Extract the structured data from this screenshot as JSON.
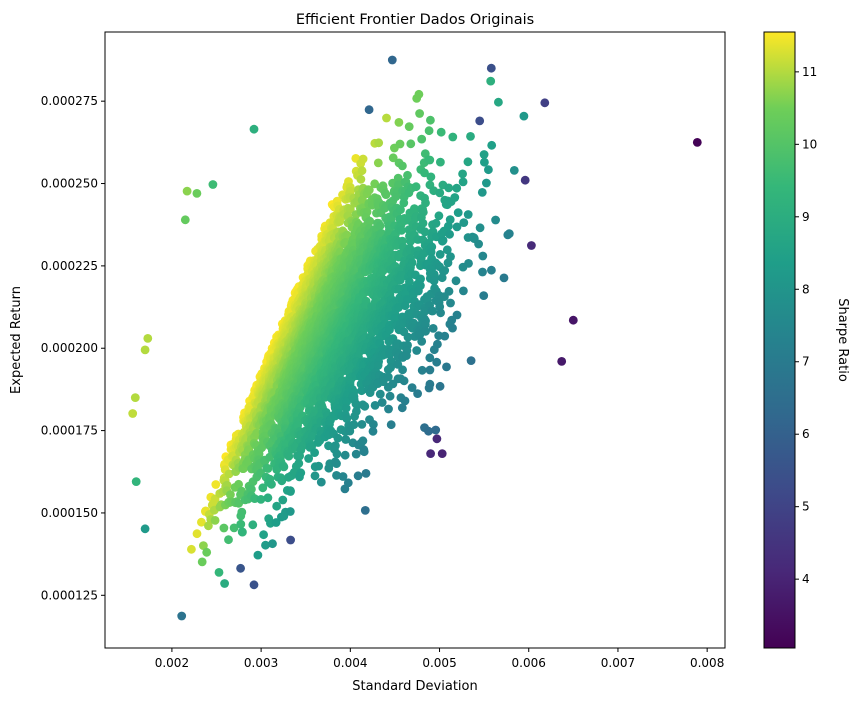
{
  "chart_data": {
    "type": "scatter",
    "title": "Efficient Frontier  Dados Originais",
    "xlabel": "Standard Deviation",
    "ylabel": "Expected Return",
    "xlim": [
      0.00125,
      0.0082
    ],
    "ylim": [
      0.000109,
      0.000296
    ],
    "xticks": [
      0.002,
      0.003,
      0.004,
      0.005,
      0.006,
      0.007,
      0.008
    ],
    "xtick_labels": [
      "0.002",
      "0.003",
      "0.004",
      "0.005",
      "0.006",
      "0.007",
      "0.008"
    ],
    "yticks": [
      0.000125,
      0.00015,
      0.000175,
      0.0002,
      0.000225,
      0.00025,
      0.000275
    ],
    "ytick_labels": [
      "0.000125",
      "0.000150",
      "0.000175",
      "0.000200",
      "0.000225",
      "0.000250",
      "0.000275"
    ],
    "grid": false,
    "colormap": "viridis",
    "colorbar": {
      "label": "Sharpe Ratio",
      "range": [
        3.05,
        11.55
      ],
      "ticks": [
        4,
        5,
        6,
        7,
        8,
        9,
        10,
        11
      ],
      "tick_labels": [
        "4",
        "5",
        "6",
        "7",
        "8",
        "9",
        "10",
        "11"
      ]
    },
    "cloud": {
      "description_points": 5000,
      "std_mean": 0.0034,
      "std_sd": 0.00075,
      "return_mean": 0.000203,
      "return_sd": 2.2e-05,
      "correlation": 0.55
    },
    "points": [
      {
        "x": 0.00789,
        "y": 0.0002625,
        "sharpe": 3.1
      },
      {
        "x": 0.0065,
        "y": 0.0002085,
        "sharpe": 3.6
      },
      {
        "x": 0.00637,
        "y": 0.000196,
        "sharpe": 3.7
      },
      {
        "x": 0.00618,
        "y": 0.0002745,
        "sharpe": 4.9
      },
      {
        "x": 0.00603,
        "y": 0.0002312,
        "sharpe": 4.2
      },
      {
        "x": 0.00596,
        "y": 0.000251,
        "sharpe": 4.6
      },
      {
        "x": 0.00558,
        "y": 0.000285,
        "sharpe": 5.4
      },
      {
        "x": 0.00545,
        "y": 0.000269,
        "sharpe": 5.3
      },
      {
        "x": 0.00447,
        "y": 0.0002875,
        "sharpe": 6.2
      },
      {
        "x": 0.00421,
        "y": 0.0002724,
        "sharpe": 6.2
      },
      {
        "x": 0.00292,
        "y": 0.0002665,
        "sharpe": 9.1
      },
      {
        "x": 0.00497,
        "y": 0.0001725,
        "sharpe": 4.1
      },
      {
        "x": 0.00503,
        "y": 0.000168,
        "sharpe": 4.0
      },
      {
        "x": 0.0049,
        "y": 0.000168,
        "sharpe": 4.1
      },
      {
        "x": 0.00211,
        "y": 0.0001187,
        "sharpe": 6.7
      },
      {
        "x": 0.00292,
        "y": 0.0001282,
        "sharpe": 5.5
      },
      {
        "x": 0.00277,
        "y": 0.0001332,
        "sharpe": 5.6
      },
      {
        "x": 0.00333,
        "y": 0.0001418,
        "sharpe": 5.3
      },
      {
        "x": 0.00159,
        "y": 0.000185,
        "sharpe": 11.0
      },
      {
        "x": 0.00156,
        "y": 0.0001802,
        "sharpe": 11.1
      },
      {
        "x": 0.0017,
        "y": 0.0001995,
        "sharpe": 11.0
      },
      {
        "x": 0.00173,
        "y": 0.000203,
        "sharpe": 11.0
      },
      {
        "x": 0.0016,
        "y": 0.0001595,
        "sharpe": 9.3
      },
      {
        "x": 0.0017,
        "y": 0.0001452,
        "sharpe": 8.2
      },
      {
        "x": 0.00217,
        "y": 0.0002477,
        "sharpe": 10.7
      },
      {
        "x": 0.00228,
        "y": 0.000247,
        "sharpe": 10.4
      },
      {
        "x": 0.00246,
        "y": 0.0002497,
        "sharpe": 9.6
      },
      {
        "x": 0.00215,
        "y": 0.000239,
        "sharpe": 10.3
      }
    ]
  }
}
